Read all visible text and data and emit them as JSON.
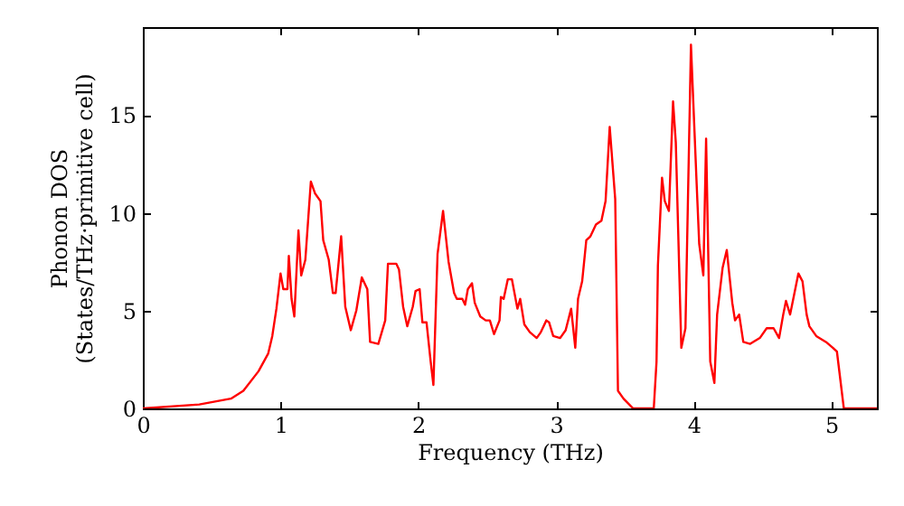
{
  "chart_data": {
    "type": "line",
    "xlabel": "Frequency (THz)",
    "ylabel": "Phonon DOS\n(States/THz·primitive cell)",
    "xlim": [
      0,
      5.33
    ],
    "ylim": [
      0,
      19.5
    ],
    "xticks": [
      0,
      1,
      2,
      3,
      4,
      5
    ],
    "yticks": [
      0,
      5,
      10,
      15
    ],
    "grid": false,
    "marker": "none",
    "line_style": "solid",
    "x": [
      0,
      0.41,
      0.64,
      0.73,
      0.84,
      0.91,
      0.94,
      0.97,
      1.0,
      1.02,
      1.05,
      1.06,
      1.08,
      1.1,
      1.13,
      1.15,
      1.18,
      1.22,
      1.25,
      1.29,
      1.31,
      1.35,
      1.38,
      1.4,
      1.44,
      1.47,
      1.51,
      1.55,
      1.59,
      1.63,
      1.65,
      1.71,
      1.76,
      1.78,
      1.84,
      1.86,
      1.89,
      1.92,
      1.96,
      1.98,
      2.01,
      2.03,
      2.06,
      2.09,
      2.11,
      2.14,
      2.18,
      2.22,
      2.26,
      2.28,
      2.32,
      2.34,
      2.36,
      2.39,
      2.41,
      2.45,
      2.49,
      2.52,
      2.55,
      2.59,
      2.6,
      2.62,
      2.65,
      2.68,
      2.72,
      2.74,
      2.77,
      2.81,
      2.86,
      2.89,
      2.93,
      2.95,
      2.98,
      3.03,
      3.07,
      3.11,
      3.14,
      3.16,
      3.19,
      3.22,
      3.25,
      3.29,
      3.33,
      3.36,
      3.39,
      3.43,
      3.45,
      3.49,
      3.56,
      3.71,
      3.73,
      3.74,
      3.77,
      3.79,
      3.82,
      3.85,
      3.87,
      3.91,
      3.94,
      3.98,
      4.02,
      4.04,
      4.07,
      4.09,
      4.12,
      4.15,
      4.17,
      4.21,
      4.24,
      4.28,
      4.3,
      4.33,
      4.36,
      4.41,
      4.48,
      4.53,
      4.58,
      4.62,
      4.65,
      4.67,
      4.7,
      4.72,
      4.76,
      4.79,
      4.82,
      4.84,
      4.89,
      4.96,
      5.01,
      5.04,
      5.09,
      5.33
    ],
    "series": [
      {
        "color": "#ff0000",
        "values": [
          0,
          0.2,
          0.5,
          0.9,
          1.9,
          2.8,
          3.7,
          5.1,
          6.9,
          6.1,
          6.1,
          7.8,
          5.6,
          4.7,
          9.1,
          6.8,
          7.6,
          11.6,
          11.0,
          10.6,
          8.6,
          7.6,
          5.9,
          5.9,
          8.8,
          5.2,
          4.0,
          5.0,
          6.7,
          6.1,
          3.4,
          3.3,
          4.5,
          7.4,
          7.4,
          7.1,
          5.2,
          4.2,
          5.2,
          6.0,
          6.1,
          4.4,
          4.4,
          2.4,
          1.2,
          7.9,
          10.1,
          7.5,
          5.9,
          5.6,
          5.6,
          5.3,
          6.1,
          6.4,
          5.4,
          4.7,
          4.5,
          4.5,
          3.8,
          4.5,
          5.7,
          5.6,
          6.6,
          6.6,
          5.1,
          5.6,
          4.3,
          3.9,
          3.6,
          3.9,
          4.5,
          4.4,
          3.7,
          3.6,
          4.0,
          5.1,
          3.1,
          5.6,
          6.5,
          8.6,
          8.8,
          9.4,
          9.6,
          10.6,
          14.4,
          10.7,
          0.9,
          0.5,
          0,
          0,
          2.4,
          7.3,
          11.8,
          10.6,
          10.1,
          15.7,
          13.6,
          3.1,
          4.1,
          18.6,
          11.7,
          8.4,
          6.8,
          13.8,
          2.4,
          1.3,
          4.8,
          7.2,
          8.1,
          5.4,
          4.5,
          4.8,
          3.4,
          3.3,
          3.6,
          4.1,
          4.1,
          3.6,
          4.8,
          5.5,
          4.8,
          5.5,
          6.9,
          6.5,
          4.8,
          4.2,
          3.7,
          3.4,
          3.1,
          2.9,
          0,
          0
        ]
      }
    ]
  }
}
